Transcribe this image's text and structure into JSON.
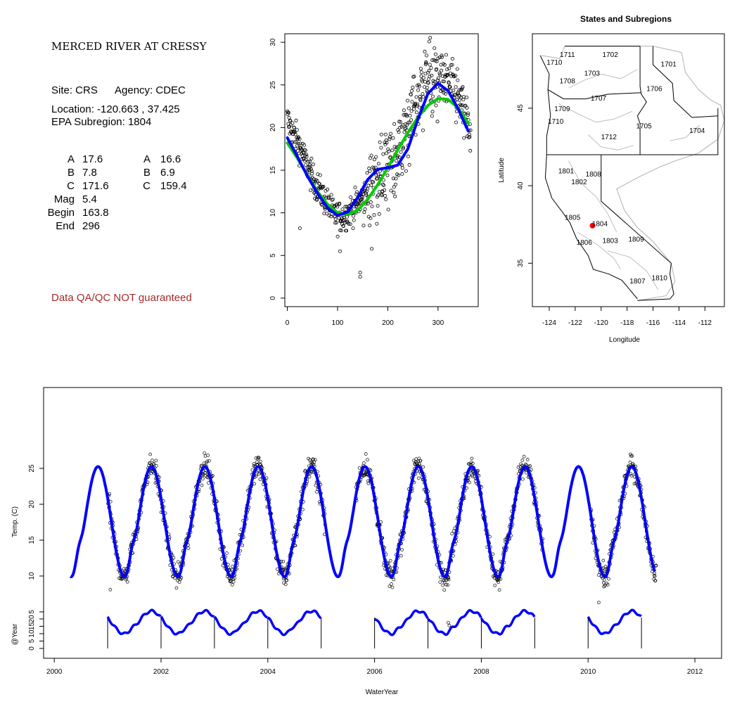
{
  "info_panel": {
    "title": "MERCED RIVER AT CRESSY",
    "site_label": "Site: CRS",
    "agency_label": "Agency: CDEC",
    "location_label": "Location: -120.663 , 37.425",
    "subregion_label": "EPA Subregion: 1804",
    "params": [
      {
        "name": "A",
        "value": "17.6",
        "name2": "A",
        "value2": "16.6"
      },
      {
        "name": "B",
        "value": "7.8",
        "name2": "B",
        "value2": "6.9"
      },
      {
        "name": "C",
        "value": "171.6",
        "name2": "C",
        "value2": "159.4"
      },
      {
        "name": "Mag",
        "value": "5.4",
        "name2": "",
        "value2": ""
      },
      {
        "name": "Begin",
        "value": "163.8",
        "name2": "",
        "value2": ""
      },
      {
        "name": "End",
        "value": "296",
        "name2": "",
        "value2": ""
      }
    ],
    "warning": "Data QA/QC NOT guaranteed"
  },
  "colors": {
    "points": "#000000",
    "fit_blue": "#0000ff",
    "fit_green": "#00cc00",
    "site_marker": "#ff0000",
    "warning": "#a52a2a",
    "region_border": "#b0b0b0"
  },
  "chart_data": [
    {
      "id": "annual-scatter",
      "type": "scatter",
      "title": "",
      "xlabel": "",
      "ylabel": "",
      "xlim": [
        -5,
        380
      ],
      "ylim": [
        -1,
        31
      ],
      "xticks": [
        0,
        100,
        200,
        300
      ],
      "yticks": [
        0,
        5,
        10,
        15,
        20,
        25,
        30
      ],
      "series": [
        {
          "kind": "points",
          "x": [
            0,
            10,
            20,
            30,
            40,
            50,
            60,
            70,
            80,
            90,
            100,
            110,
            120,
            130,
            140,
            150,
            160,
            170,
            180,
            190,
            200,
            210,
            220,
            230,
            240,
            250,
            260,
            270,
            280,
            290,
            300,
            310,
            320,
            330,
            340,
            350,
            360
          ],
          "y": [
            21,
            19.5,
            18.5,
            17,
            15.5,
            14,
            13,
            12,
            11,
            10,
            9.5,
            9.5,
            10,
            10.5,
            11,
            12,
            13,
            14.5,
            15.5,
            16,
            16.5,
            17,
            18,
            19.5,
            21,
            23,
            24.5,
            25.5,
            26.5,
            26.5,
            26,
            25.5,
            25,
            24.5,
            23.5,
            22,
            20
          ],
          "outliers": [
            {
              "x": 25,
              "y": 8.2
            },
            {
              "x": 145,
              "y": 3
            },
            {
              "x": 145,
              "y": 2.5
            },
            {
              "x": 105,
              "y": 5.5
            }
          ]
        },
        {
          "kind": "line",
          "color": "blue",
          "x": [
            0,
            20,
            40,
            60,
            80,
            100,
            120,
            140,
            160,
            180,
            200,
            220,
            240,
            260,
            280,
            300,
            320,
            340,
            360
          ],
          "y": [
            18.8,
            16.6,
            14.3,
            12.3,
            10.6,
            9.7,
            10.1,
            11.8,
            13.9,
            15.1,
            15.3,
            15.6,
            17.5,
            21,
            24,
            25.2,
            24.3,
            22.2,
            19.6
          ]
        },
        {
          "kind": "line",
          "color": "green",
          "x": [
            0,
            20,
            40,
            60,
            80,
            100,
            120,
            140,
            160,
            180,
            200,
            220,
            240,
            260,
            280,
            300,
            320,
            340,
            360
          ],
          "y": [
            18.2,
            16.4,
            14.4,
            12.5,
            11,
            10,
            9.8,
            10.3,
            11.6,
            13.3,
            15.3,
            17.4,
            19.4,
            21.2,
            22.6,
            23.4,
            23.3,
            22.3,
            20.5
          ]
        }
      ]
    },
    {
      "id": "subregion-map",
      "type": "map",
      "title": "States and Subregions",
      "xlabel": "Longitude",
      "ylabel": "Latitude",
      "xlim": [
        -125.3,
        -110.5
      ],
      "ylim": [
        32.2,
        49.8
      ],
      "xticks": [
        -124,
        -122,
        -120,
        -118,
        -116,
        -114,
        -112
      ],
      "yticks": [
        35,
        40,
        45
      ],
      "regions": [
        {
          "label": "1711",
          "lon": -122.6,
          "lat": 48.3
        },
        {
          "label": "1710",
          "lon": -123.6,
          "lat": 47.8
        },
        {
          "label": "1702",
          "lon": -119.3,
          "lat": 48.3
        },
        {
          "label": "1701",
          "lon": -114.8,
          "lat": 47.7
        },
        {
          "label": "1703",
          "lon": -120.7,
          "lat": 47.1
        },
        {
          "label": "1708",
          "lon": -122.6,
          "lat": 46.6
        },
        {
          "label": "1706",
          "lon": -115.9,
          "lat": 46.1
        },
        {
          "label": "1707",
          "lon": -120.2,
          "lat": 45.5
        },
        {
          "label": "1709",
          "lon": -123.0,
          "lat": 44.8
        },
        {
          "label": "1710",
          "lon": -123.5,
          "lat": 44.0
        },
        {
          "label": "1705",
          "lon": -116.7,
          "lat": 43.7
        },
        {
          "label": "1704",
          "lon": -112.6,
          "lat": 43.4
        },
        {
          "label": "1712",
          "lon": -119.4,
          "lat": 43.0
        },
        {
          "label": "1801",
          "lon": -122.7,
          "lat": 40.8
        },
        {
          "label": "1808",
          "lon": -120.6,
          "lat": 40.6
        },
        {
          "label": "1802",
          "lon": -121.7,
          "lat": 40.1
        },
        {
          "label": "1805",
          "lon": -122.2,
          "lat": 37.8
        },
        {
          "label": "1804",
          "lon": -120.1,
          "lat": 37.4
        },
        {
          "label": "1806",
          "lon": -121.3,
          "lat": 36.2
        },
        {
          "label": "1803",
          "lon": -119.3,
          "lat": 36.3
        },
        {
          "label": "1809",
          "lon": -117.3,
          "lat": 36.4
        },
        {
          "label": "1807",
          "lon": -117.2,
          "lat": 33.7
        },
        {
          "label": "1810",
          "lon": -115.5,
          "lat": 33.9
        }
      ],
      "site": {
        "lon": -120.663,
        "lat": 37.425
      }
    },
    {
      "id": "timeseries",
      "type": "line",
      "title": "",
      "xlabel": "WaterYear",
      "ylabel": "Temp. (C)",
      "ylabel2": "@Year",
      "xlim": [
        1999.8,
        2012.5
      ],
      "ylim": [
        0,
        29.5
      ],
      "xticks": [
        2000,
        2002,
        2004,
        2006,
        2008,
        2010,
        2012
      ],
      "yticks": [
        5,
        10,
        15,
        20,
        25
      ],
      "yticks2": [
        0,
        5,
        10,
        15,
        20
      ],
      "fit": {
        "start": 2000.3,
        "end": 2011.25,
        "peak": 25.2,
        "trough": 9.9
      },
      "observed_years": [
        2001,
        2002,
        2003,
        2004,
        2005,
        2006,
        2007,
        2008,
        2009,
        2010,
        2011
      ],
      "outliers": [
        {
          "x": 2001.05,
          "y": 8.1
        },
        {
          "x": 2007.38,
          "y": 3.5
        },
        {
          "x": 2007.4,
          "y": 3.1
        },
        {
          "x": 2010.2,
          "y": 6.3
        }
      ],
      "inset_segments": [
        [
          2001.0,
          2005.0
        ],
        [
          2006.0,
          2009.0
        ],
        [
          2010.0,
          2011.0
        ]
      ]
    }
  ]
}
